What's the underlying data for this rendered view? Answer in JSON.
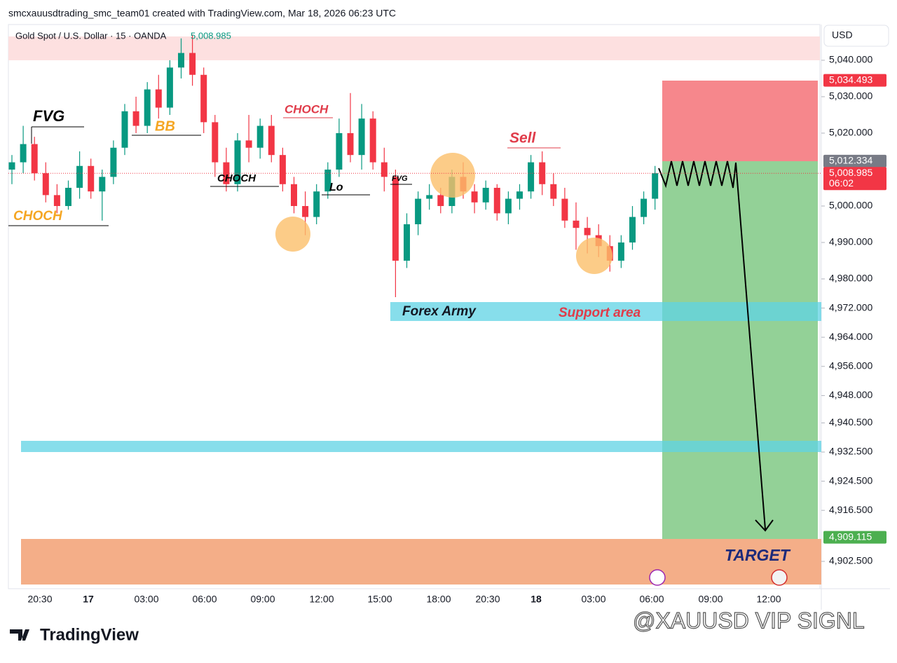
{
  "header": "smcxauusdtrading_smc_team01 created with TradingView.com, Mar 18, 2026 06:23 UTC",
  "chart_data": {
    "type": "candlestick",
    "title": "Gold Spot / U.S. Dollar · 15 · OANDA",
    "last_price": "5,008.985",
    "currency": "USD",
    "up_color": "#089981",
    "down_color": "#f23645",
    "ylim": [
      4895,
      5049.8
    ],
    "yticks": [
      {
        "value": 5040,
        "label": "5,040.000"
      },
      {
        "value": 5030,
        "label": "5,030.000"
      },
      {
        "value": 5020,
        "label": "5,020.000"
      },
      {
        "value": 5000,
        "label": "5,000.000"
      },
      {
        "value": 4990,
        "label": "4,990.000"
      },
      {
        "value": 4980,
        "label": "4,980.000"
      },
      {
        "value": 4972,
        "label": "4,972.000"
      },
      {
        "value": 4964,
        "label": "4,964.000"
      },
      {
        "value": 4956,
        "label": "4,956.000"
      },
      {
        "value": 4948,
        "label": "4,948.000"
      },
      {
        "value": 4940.5,
        "label": "4,940.500"
      },
      {
        "value": 4932.5,
        "label": "4,932.500"
      },
      {
        "value": 4924.5,
        "label": "4,924.500"
      },
      {
        "value": 4916.5,
        "label": "4,916.500"
      },
      {
        "value": 4902.5,
        "label": "4,902.500"
      }
    ],
    "price_labels": [
      {
        "value": 5034.493,
        "label": "5,034.493",
        "color": "#f23645"
      },
      {
        "value": 5012.334,
        "label": "5,012.334",
        "color": "#787b86"
      },
      {
        "value": 5008.985,
        "label": "5,008.985",
        "color": "#f23645",
        "countdown": "06:02"
      },
      {
        "value": 4909.115,
        "label": "4,909.115",
        "color": "#4caf50"
      }
    ],
    "x_labels": [
      "20:30",
      "17",
      "03:00",
      "06:00",
      "09:00",
      "12:00",
      "15:00",
      "18:00",
      "20:30",
      "18",
      "03:00",
      "06:00",
      "09:00",
      "12:00"
    ],
    "open": [
      5010,
      5012,
      5017,
      5009,
      5003,
      5000,
      5005,
      5011,
      5004,
      5008,
      5016,
      5026,
      5022,
      5032,
      5027,
      5038,
      5042,
      5036,
      5023,
      5012,
      5006,
      5018,
      5016,
      5022,
      5014,
      5006,
      5000,
      4997,
      5004,
      5010,
      5020,
      5014,
      5024,
      5012,
      5008,
      4985,
      4995,
      5002,
      5003,
      5000,
      5008,
      5004,
      5001,
      5005,
      4998,
      5002,
      5004,
      5012,
      5006,
      5002,
      4996,
      4994,
      4992,
      4989,
      4985,
      4990,
      4997,
      5002
    ],
    "high": [
      5014,
      5022,
      5019,
      5012,
      5006,
      5007,
      5015,
      5013,
      5010,
      5018,
      5028,
      5030,
      5034,
      5036,
      5040,
      5046,
      5047,
      5038,
      5025,
      5016,
      5020,
      5025,
      5024,
      5025,
      5016,
      5008,
      5004,
      5006,
      5012,
      5024,
      5031,
      5028,
      5026,
      5016,
      5010,
      4998,
      5004,
      5006,
      5005,
      5010,
      5012,
      5006,
      5007,
      5006,
      5004,
      5006,
      5014,
      5015,
      5009,
      5005,
      5001,
      4997,
      4995,
      4992,
      4992,
      5000,
      5004,
      5011
    ],
    "low": [
      5006,
      5009,
      5007,
      5001,
      4998,
      4999,
      5002,
      5002,
      4996,
      5006,
      5014,
      5020,
      5020,
      5024,
      5025,
      5035,
      5033,
      5020,
      5008,
      5004,
      5004,
      5012,
      5013,
      5012,
      5004,
      4998,
      4992,
      4995,
      5002,
      5008,
      5012,
      5010,
      5010,
      5004,
      4975,
      4983,
      4992,
      4999,
      4998,
      4998,
      5002,
      4998,
      4999,
      4996,
      4995,
      4999,
      5002,
      5003,
      5000,
      4994,
      4988,
      4987,
      4986,
      4982,
      4983,
      4988,
      4995,
      4999
    ],
    "close": [
      5012,
      5017,
      5009,
      5003,
      5000,
      5005,
      5011,
      5004,
      5008,
      5016,
      5026,
      5022,
      5032,
      5027,
      5038,
      5042,
      5036,
      5023,
      5012,
      5006,
      5018,
      5016,
      5022,
      5014,
      5006,
      5000,
      4997,
      5004,
      5010,
      5020,
      5014,
      5024,
      5012,
      5008,
      4985,
      4995,
      5002,
      5003,
      5000,
      5008,
      5004,
      5001,
      5005,
      4998,
      5002,
      5004,
      5012,
      5006,
      5002,
      4996,
      4994,
      4992,
      4989,
      4985,
      4990,
      4997,
      5002,
      5009
    ]
  },
  "annotations": {
    "fvg": "FVG",
    "bb": "BB",
    "choch_left": "CHOCH",
    "choch_mid": "CHOCH",
    "lo": "Lo",
    "choch_top": "CHOCH",
    "fvg_small": "FVG",
    "sell": "Sell",
    "forex_army": "Forex Army",
    "support": "Support area",
    "target": "TARGET"
  },
  "footer": {
    "brand": "TradingView",
    "watermark": "@XAUUSD VIP SIGNL"
  }
}
